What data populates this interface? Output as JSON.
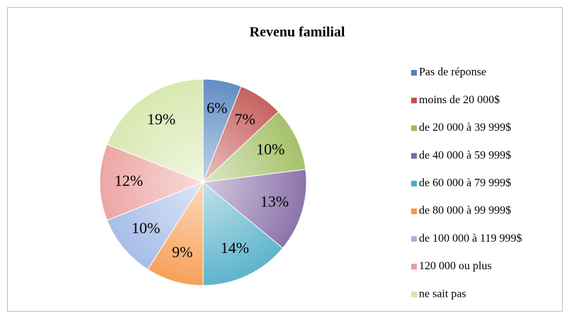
{
  "chart_data": {
    "type": "pie",
    "title": "Revenu familial",
    "categories": [
      "Pas de réponse",
      "moins de 20 000$",
      "de 20 000 à 39 999$",
      "de 40 000 à 59 999$",
      "de 60 000 à 79 999$",
      "de 80 000 à 99 999$",
      "de 100 000 à 119 999$",
      "120 000 ou plus",
      "ne sait pas"
    ],
    "values": [
      6,
      7,
      10,
      13,
      14,
      9,
      10,
      12,
      19
    ],
    "value_labels": [
      "6%",
      "7%",
      "10%",
      "13%",
      "14%",
      "9%",
      "10%",
      "12%",
      "19%"
    ],
    "colors": [
      "#4f81bd",
      "#c0504d",
      "#9bbb59",
      "#8064a2",
      "#4bacc6",
      "#f79646",
      "#9db6e6",
      "#eb9b9b",
      "#d4e6a8"
    ],
    "legend": "right"
  }
}
